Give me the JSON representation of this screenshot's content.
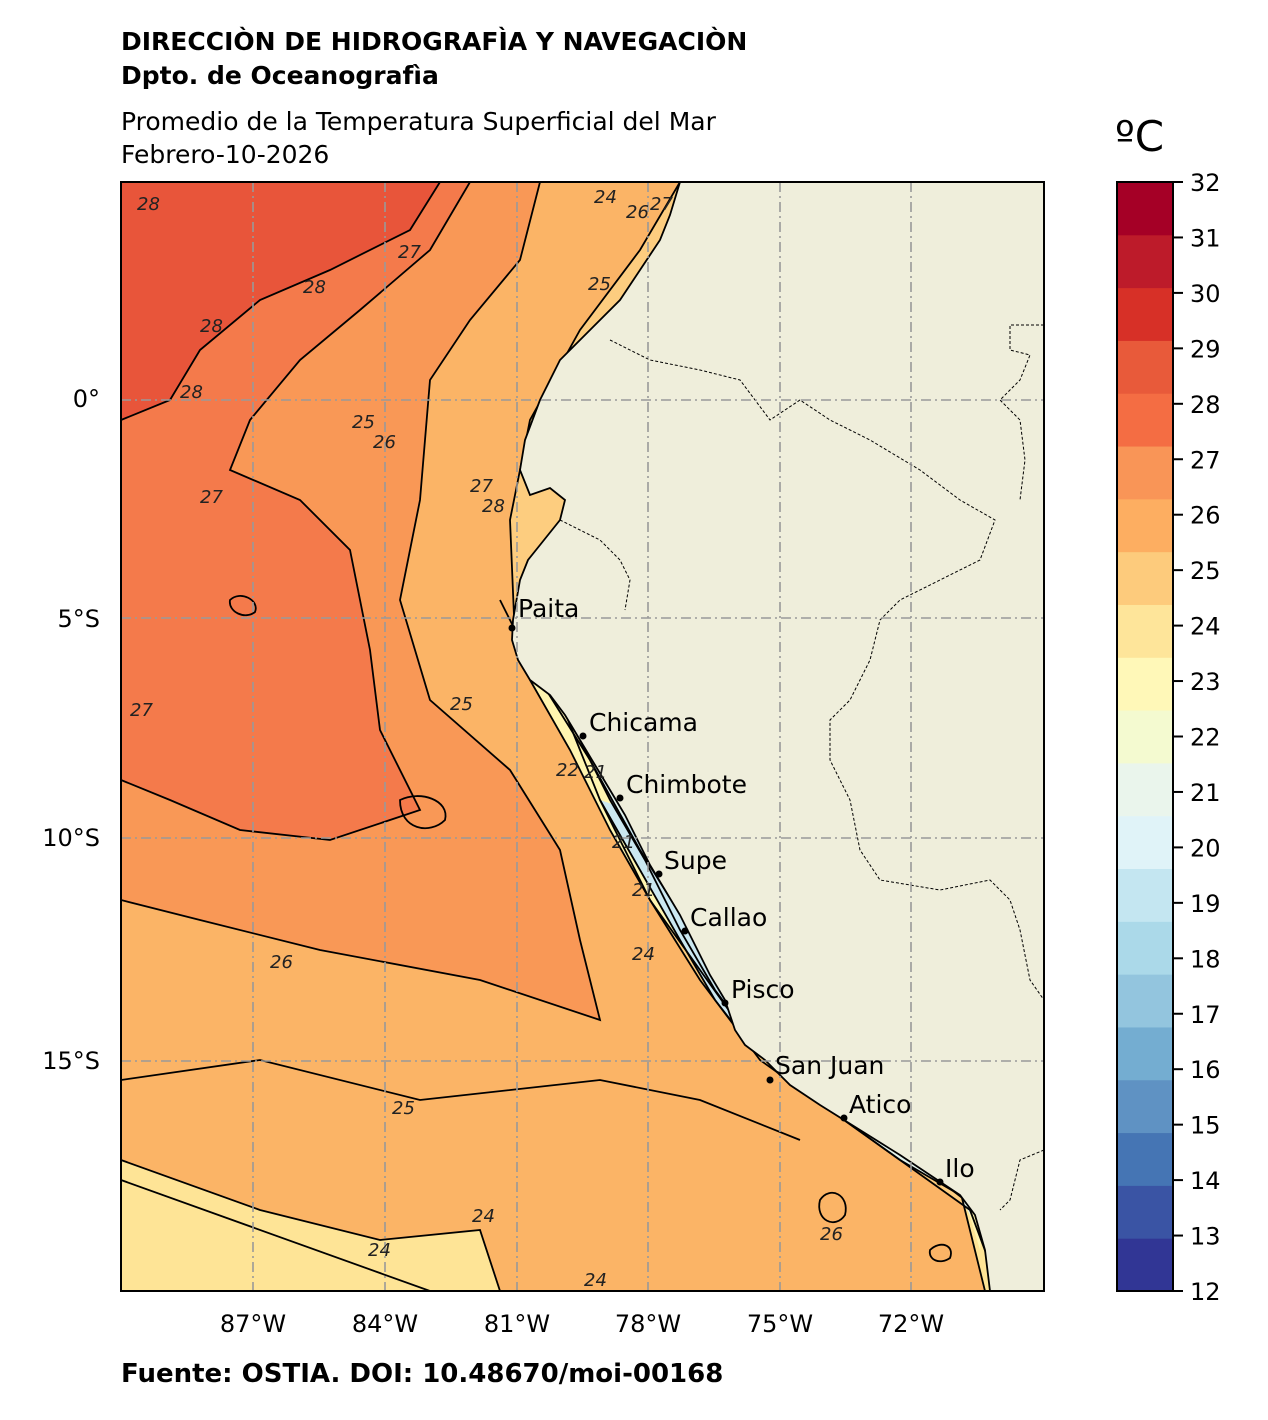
{
  "header": {
    "org_line1": "DIRECCIÒN DE HIDROGRAFÌA Y NAVEGACIÒN",
    "org_line2": "Dpto. de Oceanografìa",
    "title": "Promedio de la Temperatura Superficial del Mar",
    "date": "Febrero-10-2026"
  },
  "footer": {
    "source": "Fuente: OSTIA. DOI: 10.48670/moi-00168"
  },
  "map": {
    "lon_ticks": [
      "87°W",
      "84°W",
      "81°W",
      "78°W",
      "75°W",
      "72°W"
    ],
    "lat_ticks": [
      "0°",
      "5°S",
      "10°S",
      "15°S"
    ],
    "cities": [
      {
        "name": "Paita"
      },
      {
        "name": "Chicama"
      },
      {
        "name": "Chimbote"
      },
      {
        "name": "Supe"
      },
      {
        "name": "Callao"
      },
      {
        "name": "Pisco"
      },
      {
        "name": "San Juan"
      },
      {
        "name": "Atico"
      },
      {
        "name": "Ilo"
      }
    ],
    "contour_labels": [
      "28",
      "27",
      "28",
      "28",
      "28",
      "25",
      "26",
      "27",
      "27",
      "28",
      "27",
      "25",
      "22",
      "21",
      "21",
      "21",
      "24",
      "26",
      "25",
      "24",
      "24",
      "26",
      "24",
      "24",
      "25",
      "26",
      "27"
    ],
    "colors": {
      "land": "#efeedb",
      "c29": "#d73027",
      "c28": "#e8553a",
      "c27": "#f47a4b",
      "c26": "#f99856",
      "c25": "#fbb466",
      "c24": "#fdcd7f",
      "c23": "#fee496",
      "c22": "#fff5b0",
      "c21": "#f4fad0",
      "c20": "#e3f3ec",
      "c19": "#cbe8f1",
      "c18": "#abd6e8"
    }
  },
  "colorbar": {
    "unit": "ºC",
    "ticks": [
      "12",
      "13",
      "14",
      "15",
      "16",
      "17",
      "18",
      "19",
      "20",
      "21",
      "22",
      "23",
      "24",
      "25",
      "26",
      "27",
      "28",
      "29",
      "30",
      "31",
      "32"
    ],
    "colors": [
      "#313695",
      "#3a54a4",
      "#4575b4",
      "#5f92c3",
      "#74add1",
      "#93c5de",
      "#abd9e9",
      "#c4e6f1",
      "#e0f3f8",
      "#eaf5ec",
      "#f4fad0",
      "#fff8b8",
      "#fee59a",
      "#fdcb7c",
      "#fdae61",
      "#f99557",
      "#f46d43",
      "#e85a3a",
      "#d73027",
      "#bd1b2a",
      "#a50026"
    ]
  }
}
